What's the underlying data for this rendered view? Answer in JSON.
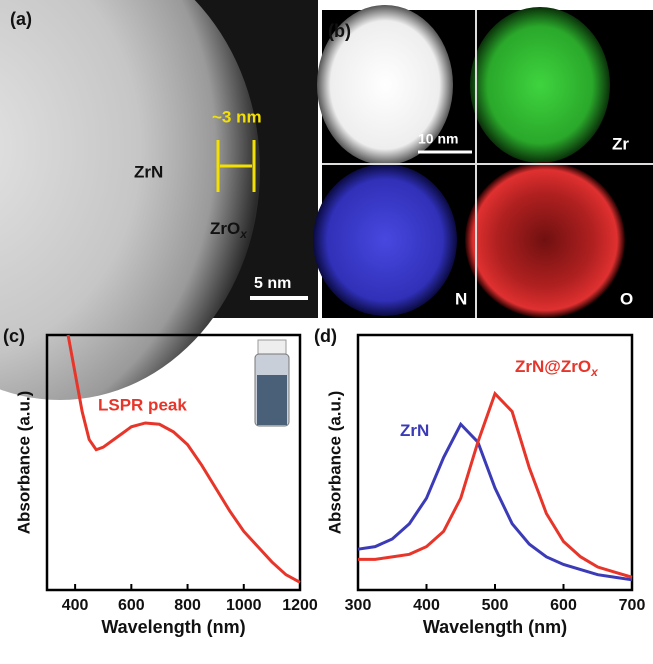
{
  "panel_a": {
    "label": "(a)",
    "scale": "~3 nm",
    "core": "ZrN",
    "shell": "ZrO",
    "shell_subscript": "x",
    "scalebar": "5 nm"
  },
  "panel_b": {
    "label": "(b)",
    "scalebar": "10 nm",
    "maps": [
      "Zr",
      "N",
      "O"
    ]
  },
  "chart_data": [
    {
      "type": "line",
      "label": "(c)",
      "x_label": "Wavelength (nm)",
      "y_label": "Absorbance (a.u.)",
      "annotation": "LSPR peak",
      "x": [
        375,
        400,
        425,
        450,
        475,
        500,
        550,
        600,
        650,
        700,
        750,
        800,
        850,
        900,
        950,
        1000,
        1050,
        1100,
        1150,
        1200
      ],
      "series": [
        {
          "name": null,
          "color": "#e8352a",
          "values": [
            1.0,
            0.85,
            0.7,
            0.59,
            0.55,
            0.56,
            0.6,
            0.64,
            0.655,
            0.65,
            0.62,
            0.57,
            0.49,
            0.4,
            0.31,
            0.23,
            0.17,
            0.11,
            0.06,
            0.03
          ]
        }
      ],
      "xlim": [
        300,
        1200
      ],
      "xticks": [
        400,
        600,
        800,
        1000,
        1200
      ],
      "ylim": [
        0,
        1
      ]
    },
    {
      "type": "line",
      "label": "(d)",
      "x_label": "Wavelength (nm)",
      "y_label": "Absorbance (a.u.)",
      "x": [
        300,
        325,
        350,
        375,
        400,
        425,
        450,
        475,
        500,
        525,
        550,
        575,
        600,
        625,
        650,
        675,
        700
      ],
      "series": [
        {
          "name": "ZrN",
          "color": "#3b3bb8",
          "values": [
            0.16,
            0.17,
            0.2,
            0.26,
            0.36,
            0.52,
            0.65,
            0.58,
            0.4,
            0.26,
            0.18,
            0.13,
            0.1,
            0.08,
            0.06,
            0.05,
            0.04
          ]
        },
        {
          "name": "ZrN@ZrO",
          "name_subscript": "x",
          "color": "#e8352a",
          "values": [
            0.12,
            0.12,
            0.13,
            0.14,
            0.17,
            0.23,
            0.36,
            0.58,
            0.77,
            0.7,
            0.48,
            0.3,
            0.19,
            0.13,
            0.09,
            0.07,
            0.05
          ]
        }
      ],
      "xlim": [
        300,
        700
      ],
      "xticks": [
        300,
        400,
        500,
        600,
        700
      ],
      "ylim": [
        0,
        1
      ]
    }
  ]
}
